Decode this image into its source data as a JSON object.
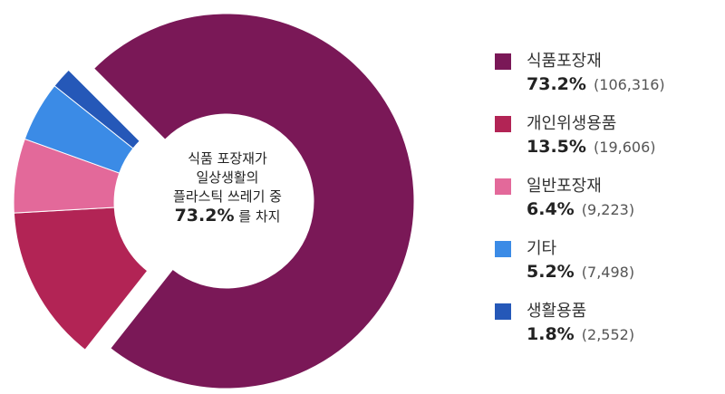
{
  "chart_data": {
    "type": "pie",
    "variant": "donut",
    "center_label": {
      "line1": "식품 포장재가",
      "line2": "일상생활의",
      "line3": "플라스틱 쓰레기 중",
      "highlight": "73.2%",
      "tail": "를 차지"
    },
    "slices": [
      {
        "name": "식품포장재",
        "value": 73.2,
        "value_label": "73.2%",
        "count": "(106,316)",
        "color": "#7a1857",
        "exploded": false
      },
      {
        "name": "개인위생용품",
        "value": 13.5,
        "value_label": "13.5%",
        "count": "(19,606)",
        "color": "#b22455",
        "exploded": true
      },
      {
        "name": "일반포장재",
        "value": 6.4,
        "value_label": "6.4%",
        "count": "(9,223)",
        "color": "#e3699a",
        "exploded": true
      },
      {
        "name": "기타",
        "value": 5.2,
        "value_label": "5.2%",
        "count": "(7,498)",
        "color": "#3b8be6",
        "exploded": true
      },
      {
        "name": "생활용품",
        "value": 1.8,
        "value_label": "1.8%",
        "count": "(2,552)",
        "color": "#2558b8",
        "exploded": true
      }
    ],
    "legend_position": "right"
  }
}
